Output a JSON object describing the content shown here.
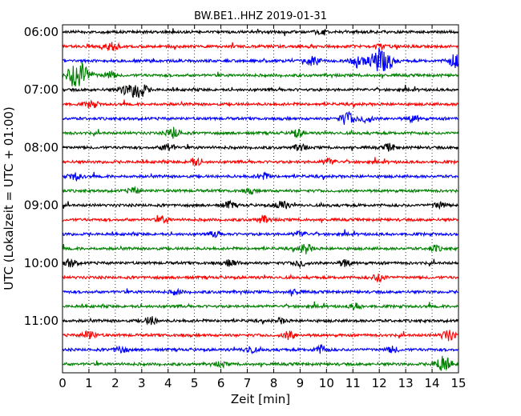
{
  "chart_data": {
    "type": "line",
    "title": "BW.BE1..HHZ 2019-01-31",
    "xlabel": "Zeit  [min]",
    "ylabel": "UTC (Lokalzeit = UTC + 01:00)",
    "xlim": [
      0,
      15
    ],
    "xticks": [
      0,
      1,
      2,
      3,
      4,
      5,
      6,
      7,
      8,
      9,
      10,
      11,
      12,
      13,
      14,
      15
    ],
    "xtick_labels": [
      "0",
      "1",
      "2",
      "3",
      "4",
      "5",
      "6",
      "7",
      "8",
      "9",
      "10",
      "11",
      "12",
      "13",
      "14",
      "15"
    ],
    "y_start": "06:00",
    "row_minutes": 15,
    "yticks": [
      {
        "row": 0,
        "label": "06:00"
      },
      {
        "row": 4,
        "label": "07:00"
      },
      {
        "row": 8,
        "label": "08:00"
      },
      {
        "row": 12,
        "label": "09:00"
      },
      {
        "row": 16,
        "label": "10:00"
      },
      {
        "row": 20,
        "label": "11:00"
      }
    ],
    "grid_vertical": true,
    "grid_style": "dotted",
    "color_cycle": [
      "#000000",
      "#ff0000",
      "#0000ff",
      "#008000"
    ],
    "traces": [
      {
        "row": 0,
        "color": "#000000",
        "events": [
          [
            9.8,
            0.25
          ]
        ]
      },
      {
        "row": 1,
        "color": "#ff0000",
        "events": [
          [
            1.85,
            0.35
          ],
          [
            12.0,
            0.2
          ]
        ]
      },
      {
        "row": 2,
        "color": "#0000ff",
        "events": [
          [
            9.5,
            0.45
          ],
          [
            11.2,
            0.55
          ],
          [
            12.0,
            1.0
          ],
          [
            12.4,
            0.4
          ],
          [
            14.9,
            0.6
          ]
        ]
      },
      {
        "row": 3,
        "color": "#008000",
        "events": [
          [
            0.6,
            1.3
          ],
          [
            1.8,
            0.3
          ]
        ]
      },
      {
        "row": 4,
        "color": "#000000",
        "events": [
          [
            2.85,
            0.8
          ],
          [
            2.3,
            0.3
          ]
        ]
      },
      {
        "row": 5,
        "color": "#ff0000",
        "events": [
          [
            1.1,
            0.3
          ]
        ]
      },
      {
        "row": 6,
        "color": "#0000ff",
        "events": [
          [
            10.8,
            0.55
          ],
          [
            11.5,
            0.3
          ],
          [
            13.3,
            0.3
          ]
        ]
      },
      {
        "row": 7,
        "color": "#008000",
        "events": [
          [
            4.2,
            0.45
          ],
          [
            8.9,
            0.3
          ]
        ]
      },
      {
        "row": 8,
        "color": "#000000",
        "events": [
          [
            4.0,
            0.35
          ],
          [
            9.0,
            0.3
          ],
          [
            12.4,
            0.3
          ]
        ]
      },
      {
        "row": 9,
        "color": "#ff0000",
        "events": [
          [
            5.0,
            0.35
          ],
          [
            10.1,
            0.3
          ]
        ]
      },
      {
        "row": 10,
        "color": "#0000ff",
        "events": [
          [
            0.5,
            0.3
          ],
          [
            7.6,
            0.3
          ]
        ]
      },
      {
        "row": 11,
        "color": "#008000",
        "events": [
          [
            2.7,
            0.25
          ],
          [
            7.1,
            0.2
          ]
        ]
      },
      {
        "row": 12,
        "color": "#000000",
        "events": [
          [
            8.3,
            0.4
          ],
          [
            6.3,
            0.3
          ],
          [
            14.3,
            0.3
          ]
        ]
      },
      {
        "row": 13,
        "color": "#ff0000",
        "events": [
          [
            3.8,
            0.25
          ],
          [
            7.6,
            0.3
          ]
        ]
      },
      {
        "row": 14,
        "color": "#0000ff",
        "events": [
          [
            5.8,
            0.25
          ],
          [
            9.0,
            0.25
          ]
        ]
      },
      {
        "row": 15,
        "color": "#008000",
        "events": [
          [
            9.2,
            0.4
          ],
          [
            14.1,
            0.25
          ]
        ]
      },
      {
        "row": 16,
        "color": "#000000",
        "events": [
          [
            0.3,
            0.35
          ],
          [
            6.4,
            0.3
          ],
          [
            9.0,
            0.3
          ],
          [
            10.7,
            0.3
          ]
        ]
      },
      {
        "row": 17,
        "color": "#ff0000",
        "events": [
          [
            12.0,
            0.35
          ]
        ]
      },
      {
        "row": 18,
        "color": "#0000ff",
        "events": [
          [
            4.3,
            0.2
          ],
          [
            8.8,
            0.2
          ]
        ]
      },
      {
        "row": 19,
        "color": "#008000",
        "events": [
          [
            11.1,
            0.25
          ]
        ]
      },
      {
        "row": 20,
        "color": "#000000",
        "events": [
          [
            3.35,
            0.35
          ],
          [
            8.3,
            0.2
          ]
        ]
      },
      {
        "row": 21,
        "color": "#ff0000",
        "events": [
          [
            1.0,
            0.35
          ],
          [
            8.6,
            0.35
          ],
          [
            14.6,
            0.45
          ]
        ]
      },
      {
        "row": 22,
        "color": "#0000ff",
        "events": [
          [
            2.2,
            0.3
          ],
          [
            7.1,
            0.3
          ],
          [
            9.8,
            0.35
          ],
          [
            12.5,
            0.25
          ]
        ]
      },
      {
        "row": 23,
        "color": "#008000",
        "events": [
          [
            14.4,
            0.7
          ],
          [
            6.0,
            0.2
          ]
        ]
      }
    ]
  }
}
